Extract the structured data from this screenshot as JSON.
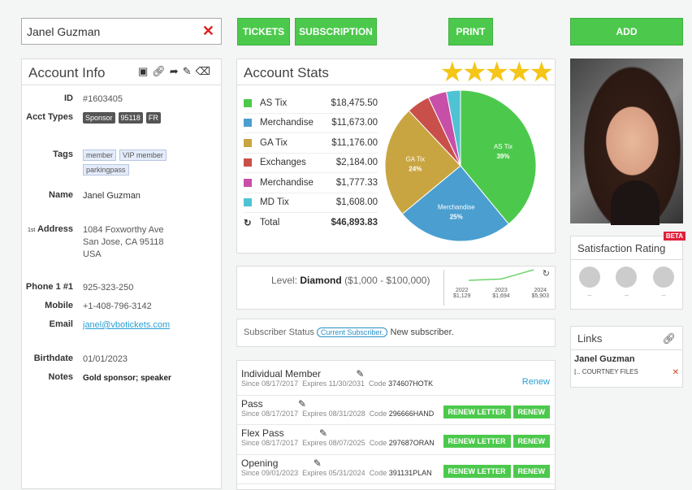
{
  "search": {
    "value": "Janel Guzman"
  },
  "toolbar": {
    "tickets": "TICKETS",
    "subscription": "SUBSCRIPTION",
    "print": "PRINT",
    "add": "ADD"
  },
  "account_info": {
    "title": "Account Info",
    "id_label": "ID",
    "id": "#1603405",
    "types_label": "Acct Types",
    "types": [
      "Sponsor",
      "95118",
      "FR"
    ],
    "tags_label": "Tags",
    "tags": [
      "member",
      "VIP member",
      "parkingpass"
    ],
    "name_label": "Name",
    "name": "Janel Guzman",
    "address_prefix": "1st",
    "address_label": "Address",
    "address": [
      "1084 Foxworthy Ave",
      "San Jose, CA 95118",
      "USA"
    ],
    "phone_label": "Phone 1 #1",
    "phone": "925-323-250",
    "mobile_label": "Mobile",
    "mobile": "+1-408-796-3142",
    "email_label": "Email",
    "email": "janel@vbotickets.com",
    "birthdate_label": "Birthdate",
    "birthdate": "01/01/2023",
    "notes_label": "Notes",
    "notes": "Gold sponsor; speaker"
  },
  "account_stats": {
    "title": "Account Stats",
    "stars": 5,
    "items": [
      {
        "label": "AS Tix",
        "amount": "$18,475.50",
        "color": "#4cc94c",
        "pct": 39
      },
      {
        "label": "Merchandise",
        "amount": "$11,673.00",
        "color": "#4a9fd0",
        "pct": 25
      },
      {
        "label": "GA Tix",
        "amount": "$11,176.00",
        "color": "#c9a542",
        "pct": 24
      },
      {
        "label": "Exchanges",
        "amount": "$2,184.00",
        "color": "#c9504a",
        "pct": 5
      },
      {
        "label": "Merchandise",
        "amount": "$1,777.33",
        "color": "#c84fa8",
        "pct": 4
      },
      {
        "label": "MD Tix",
        "amount": "$1,608.00",
        "color": "#4fc3d3",
        "pct": 3
      }
    ],
    "total_label": "Total",
    "total": "$46,893.83",
    "pie_labels": [
      {
        "name": "AS Tix",
        "pct": "39%"
      },
      {
        "name": "Merchandise",
        "pct": "25%"
      },
      {
        "name": "GA Tix",
        "pct": "24%"
      }
    ]
  },
  "level": {
    "prefix": "Level:",
    "name": "Diamond",
    "range": "($1,000 - $100,000)",
    "trend": [
      {
        "year": "2022",
        "amount": "$1,129",
        "value": 1129
      },
      {
        "year": "2023",
        "amount": "$1,694",
        "value": 1694
      },
      {
        "year": "2024",
        "amount": "$5,903",
        "value": 5903
      }
    ]
  },
  "subscriber": {
    "label": "Subscriber Status",
    "badge": "Current Subscriber.",
    "text": "New subscriber."
  },
  "memberships": [
    {
      "name": "Individual Member",
      "since": "08/17/2017",
      "expires": "11/30/2031",
      "code": "374607HOTK",
      "action": "Renew"
    },
    {
      "name": "Pass",
      "since": "08/17/2017",
      "expires": "08/31/2028",
      "code": "296666HAND"
    },
    {
      "name": "Flex Pass",
      "since": "08/17/2017",
      "expires": "08/07/2025",
      "code": "297687ORAN"
    },
    {
      "name": "Opening",
      "since": "09/01/2023",
      "expires": "05/31/2024",
      "code": "391131PLAN"
    }
  ],
  "membership_labels": {
    "since": "Since",
    "expires": "Expires",
    "code": "Code",
    "renew_letter": "RENEW LETTER",
    "renew": "RENEW"
  },
  "satisfaction": {
    "title": "Satisfaction Rating",
    "beta": "BETA",
    "values": [
      "–",
      "–",
      "–"
    ]
  },
  "links": {
    "title": "Links",
    "name": "Janel Guzman",
    "item": "COURTNEY FILES"
  }
}
